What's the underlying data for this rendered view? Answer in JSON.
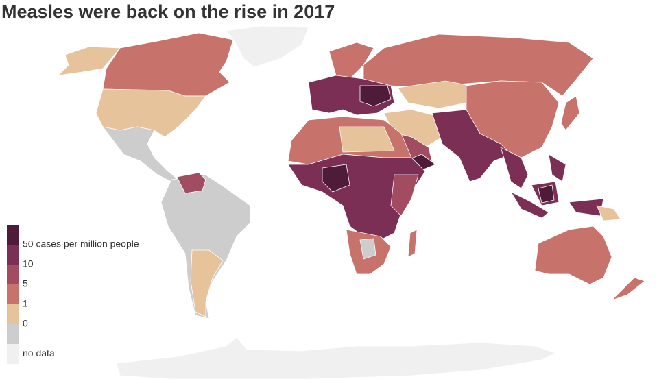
{
  "title": "Measles were back on the rise in 2017",
  "legend": {
    "colors": [
      "#4e1b39",
      "#7c2f55",
      "#a24c61",
      "#c7736c",
      "#e7c39c",
      "#cdcdcd",
      "#f0f0f0"
    ],
    "labels": [
      "50 cases per million people",
      "10",
      "5",
      "1",
      "0"
    ],
    "no_data_label": "no data"
  }
}
